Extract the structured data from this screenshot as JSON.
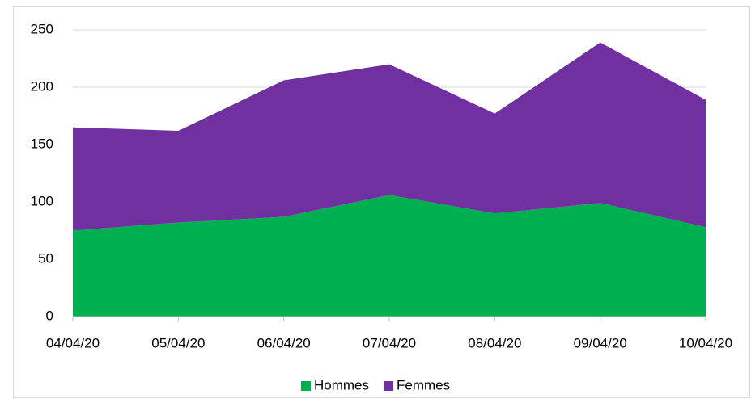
{
  "chart_data": {
    "type": "stacked_area",
    "categories": [
      "04/04/20",
      "05/04/20",
      "06/04/20",
      "07/04/20",
      "08/04/20",
      "09/04/20",
      "10/04/20"
    ],
    "series": [
      {
        "name": "Hommes",
        "color": "#00b050",
        "values": [
          75,
          82,
          87,
          106,
          90,
          99,
          78
        ]
      },
      {
        "name": "Femmes",
        "color": "#7030a0",
        "values": [
          90,
          80,
          119,
          114,
          87,
          140,
          111
        ]
      }
    ],
    "ylim": [
      0,
      250
    ],
    "yticks": [
      0,
      50,
      100,
      150,
      200,
      250
    ],
    "grid": true,
    "legend": "bottom"
  }
}
